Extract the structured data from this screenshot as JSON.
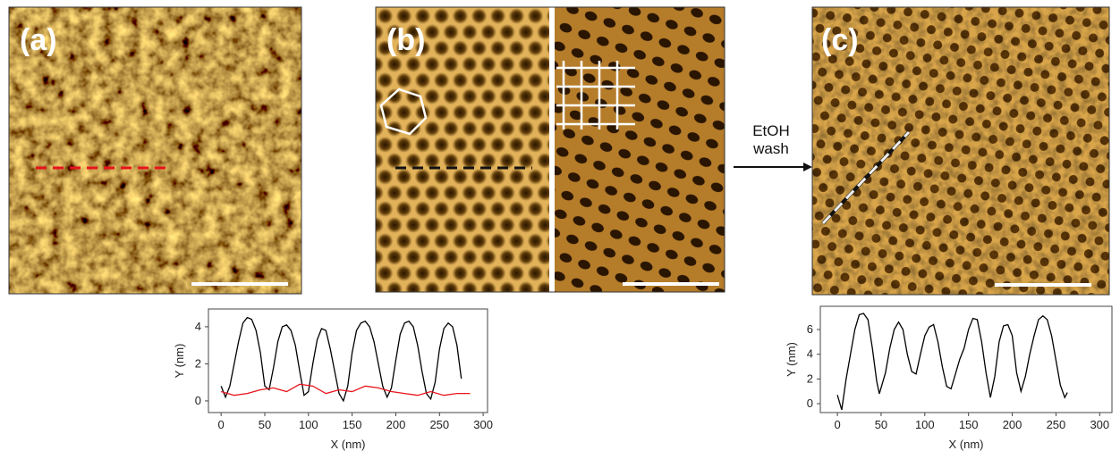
{
  "panels": {
    "a": "(a)",
    "b": "(b)",
    "c": "(c)"
  },
  "arrow_label": [
    "EtOH",
    "wash"
  ],
  "chart_data": [
    {
      "type": "line",
      "x_label": "X (nm)",
      "y_label": "Y (nm)",
      "xlim": [
        -14.5,
        305
      ],
      "ylim": [
        -0.63,
        4.96
      ],
      "xticks": [
        0,
        50,
        100,
        150,
        200,
        250,
        300
      ],
      "yticks": [
        0,
        2,
        4
      ],
      "series": [
        {
          "color": "#000000",
          "x": [
            0,
            5,
            10,
            15,
            20,
            25,
            30,
            35,
            40,
            45,
            50,
            55,
            60,
            65,
            70,
            75,
            80,
            85,
            90,
            95,
            100,
            105,
            110,
            115,
            120,
            125,
            130,
            135,
            140,
            145,
            150,
            155,
            160,
            165,
            170,
            175,
            180,
            185,
            190,
            195,
            200,
            205,
            210,
            215,
            220,
            225,
            230,
            235,
            240,
            245,
            250,
            255,
            260,
            265,
            270,
            275
          ],
          "values": [
            0.8,
            0.2,
            0.8,
            2.0,
            3.2,
            4.2,
            4.5,
            4.4,
            3.8,
            2.6,
            0.8,
            0.6,
            1.8,
            3.2,
            4.0,
            4.1,
            3.8,
            3.0,
            1.6,
            0.3,
            0.5,
            2.0,
            3.3,
            3.9,
            3.8,
            2.8,
            1.6,
            0.4,
            0.0,
            0.8,
            2.6,
            3.8,
            4.2,
            4.3,
            4.0,
            3.2,
            2.0,
            0.8,
            0.2,
            0.7,
            2.2,
            3.6,
            4.2,
            4.3,
            4.0,
            3.0,
            1.6,
            0.4,
            0.1,
            1.0,
            2.8,
            3.9,
            4.2,
            4.0,
            3.0,
            1.2
          ]
        },
        {
          "color": "#e8131b",
          "x": [
            0,
            15,
            30,
            45,
            60,
            75,
            90,
            105,
            120,
            135,
            150,
            165,
            180,
            195,
            210,
            225,
            240,
            255,
            270,
            285
          ],
          "values": [
            0.5,
            0.3,
            0.4,
            0.6,
            0.7,
            0.5,
            0.9,
            0.8,
            0.4,
            0.6,
            0.5,
            0.8,
            0.7,
            0.5,
            0.4,
            0.3,
            0.5,
            0.3,
            0.4,
            0.4
          ]
        }
      ]
    },
    {
      "type": "line",
      "x_label": "X (nm)",
      "y_label": "Y (nm)",
      "xlim": [
        -19.5,
        314
      ],
      "ylim": [
        -0.72,
        7.88
      ],
      "xticks": [
        0,
        50,
        100,
        150,
        200,
        250,
        300
      ],
      "yticks": [
        0,
        2,
        4,
        6
      ],
      "series": [
        {
          "color": "#000000",
          "x": [
            0,
            5,
            10,
            15,
            20,
            25,
            30,
            35,
            40,
            45,
            48,
            55,
            60,
            65,
            70,
            75,
            80,
            85,
            90,
            95,
            100,
            105,
            110,
            115,
            120,
            125,
            130,
            135,
            140,
            145,
            150,
            155,
            160,
            165,
            170,
            175,
            180,
            185,
            190,
            195,
            200,
            205,
            210,
            215,
            220,
            225,
            230,
            235,
            240,
            245,
            250,
            255,
            260,
            263
          ],
          "values": [
            0.7,
            -0.5,
            2.0,
            4.0,
            6.0,
            7.2,
            7.3,
            6.8,
            4.5,
            1.8,
            0.8,
            2.5,
            4.5,
            6.0,
            6.6,
            6.0,
            4.0,
            2.6,
            2.4,
            4.0,
            5.5,
            6.2,
            6.4,
            5.0,
            3.0,
            1.4,
            1.2,
            2.4,
            3.6,
            4.5,
            6.0,
            6.9,
            6.8,
            5.0,
            2.5,
            0.5,
            2.2,
            5.0,
            6.3,
            6.4,
            5.5,
            2.5,
            1.0,
            2.2,
            4.0,
            5.5,
            6.8,
            7.1,
            6.8,
            5.5,
            3.5,
            1.5,
            0.5,
            0.9
          ]
        }
      ]
    }
  ]
}
